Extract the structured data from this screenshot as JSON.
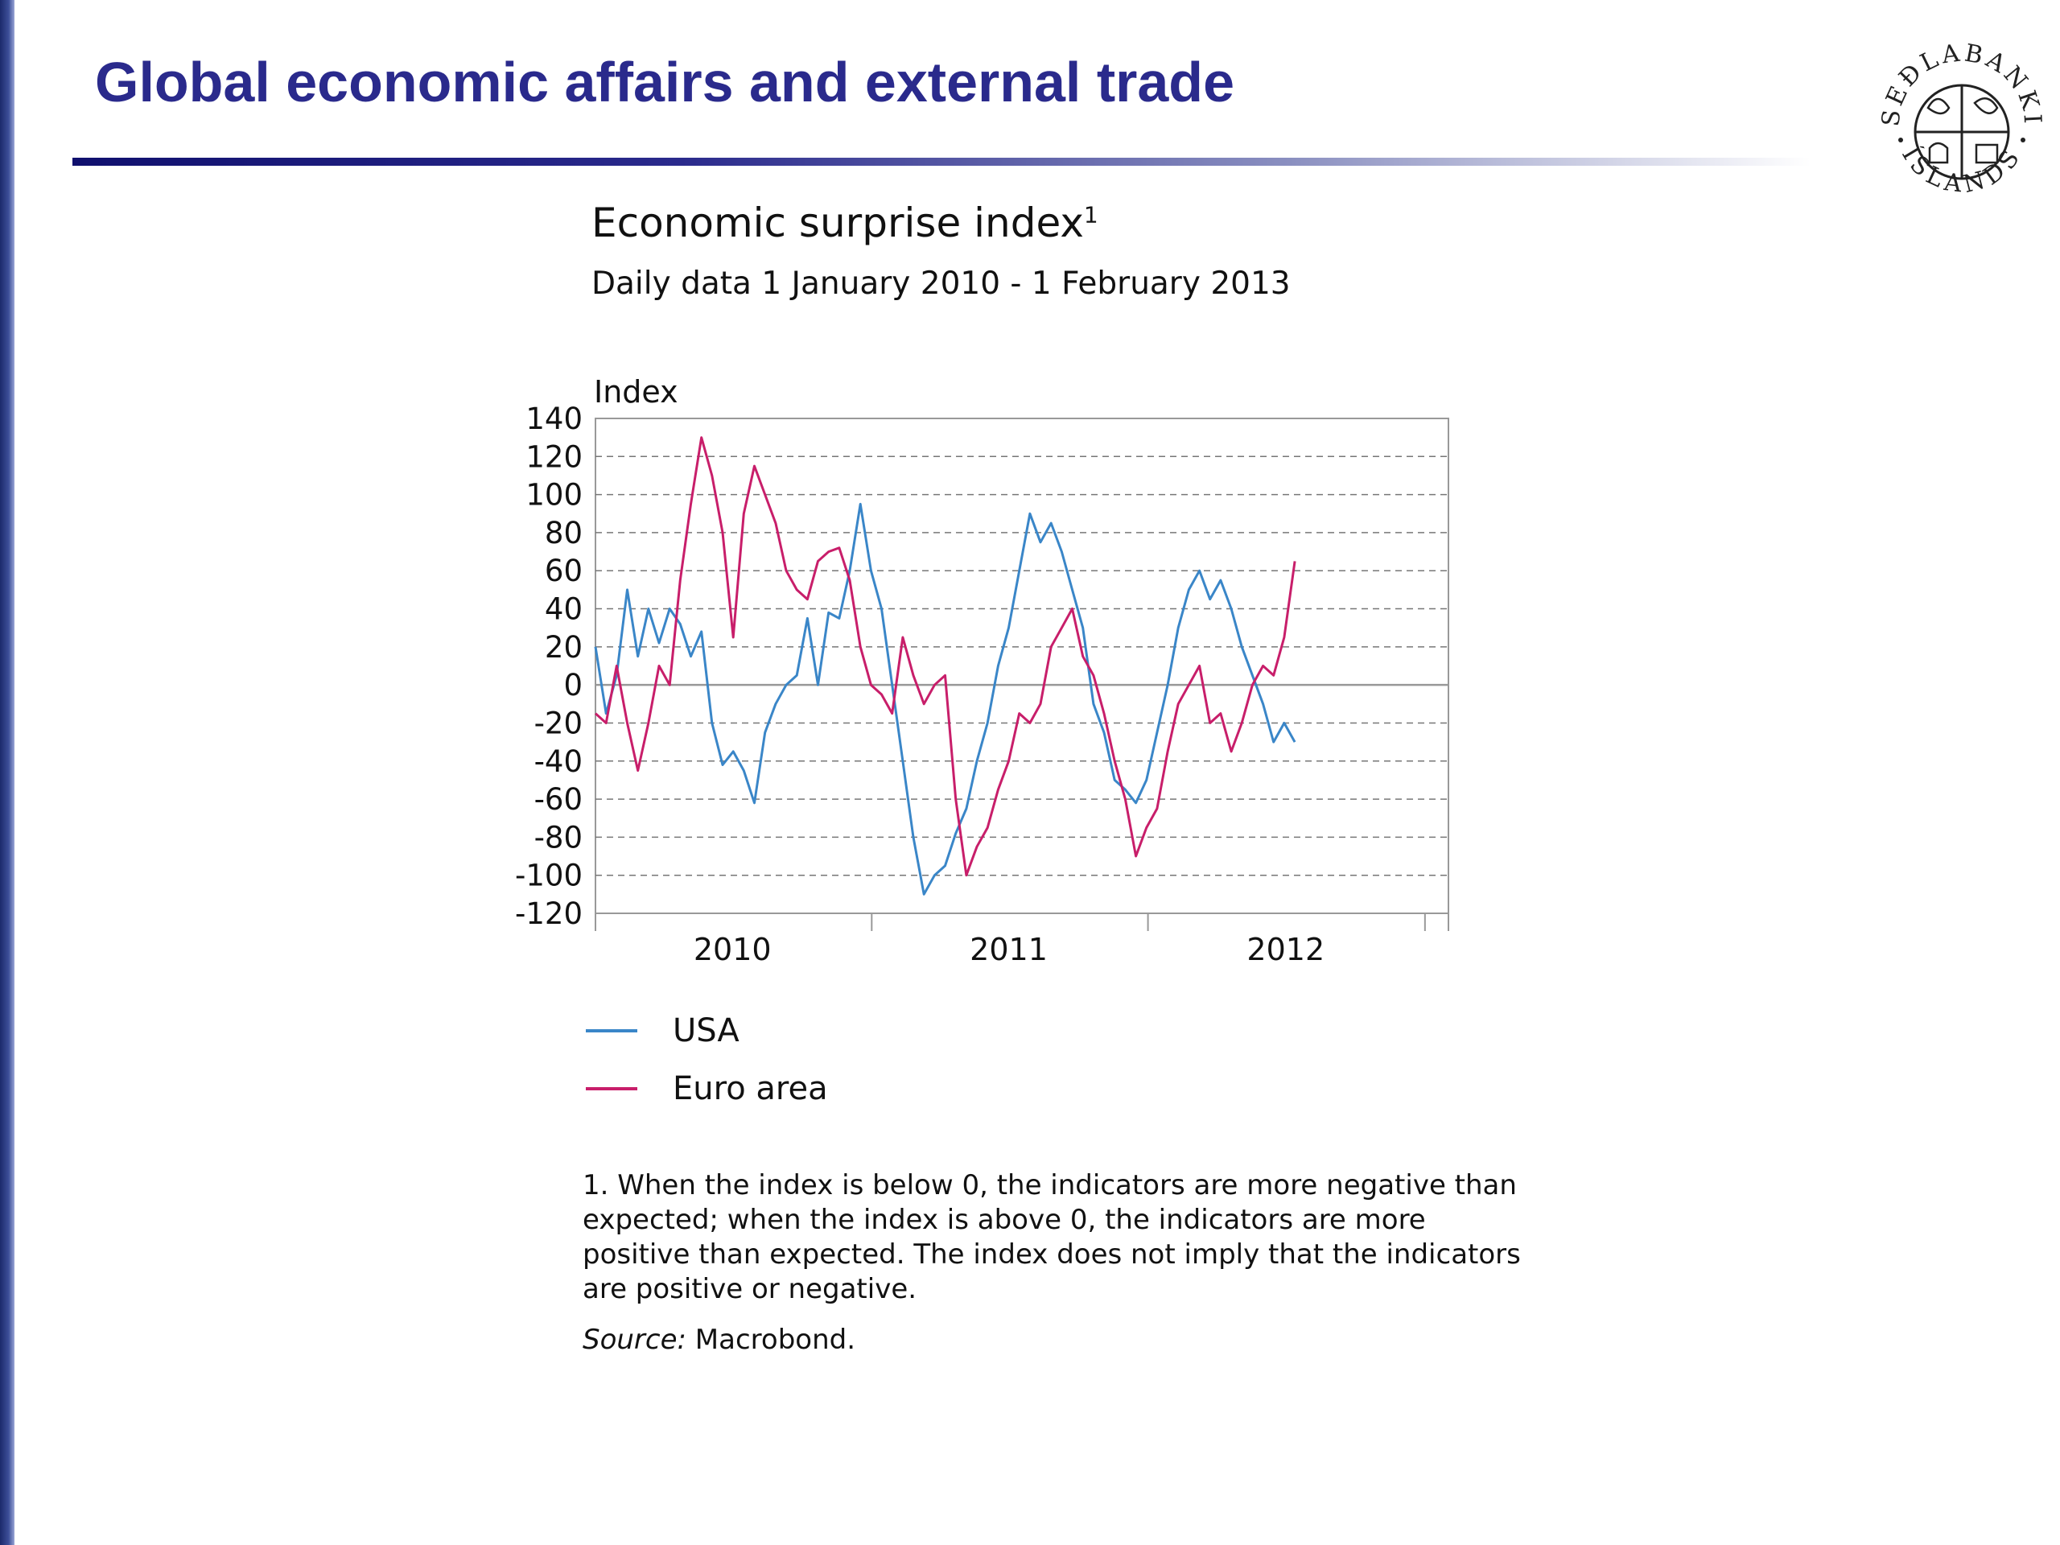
{
  "slide": {
    "title": "Global economic affairs and external trade"
  },
  "logo": {
    "text_top": "SEÐLABANKI",
    "text_bottom": "ÍSLANDS",
    "icon": "central-bank-seal-icon"
  },
  "colors": {
    "title": "#2a2a8c",
    "usa": "#3a86c8",
    "euro": "#c81e6a",
    "grid": "#777777"
  },
  "chart_data": {
    "type": "line",
    "title": "Economic surprise index",
    "title_footnote_marker": "1",
    "subtitle": "Daily data 1 January 2010 - 1 February 2013",
    "ylabel": "Index",
    "ylim": [
      -120,
      140
    ],
    "yticks": [
      "140",
      "120",
      "100",
      "80",
      "60",
      "40",
      "20",
      "0",
      "-20",
      "-40",
      "-60",
      "-80",
      "-100",
      "-120"
    ],
    "xlim": [
      "2010-01-01",
      "2013-02-01"
    ],
    "xtick_labels": [
      {
        "label": "2010",
        "date": "2010-07-01"
      },
      {
        "label": "2011",
        "date": "2011-07-01"
      },
      {
        "label": "2012",
        "date": "2012-07-01"
      }
    ],
    "year_boundaries": [
      "2011-01-01",
      "2012-01-01",
      "2013-01-01"
    ],
    "grid": true,
    "legend_position": "bottom-left",
    "series": [
      {
        "name": "USA",
        "color": "#3a86c8",
        "points": [
          [
            "2010-01-01",
            20
          ],
          [
            "2010-01-15",
            -15
          ],
          [
            "2010-01-29",
            5
          ],
          [
            "2010-02-12",
            50
          ],
          [
            "2010-02-26",
            15
          ],
          [
            "2010-03-12",
            40
          ],
          [
            "2010-03-26",
            22
          ],
          [
            "2010-04-09",
            40
          ],
          [
            "2010-04-23",
            32
          ],
          [
            "2010-05-07",
            15
          ],
          [
            "2010-05-21",
            28
          ],
          [
            "2010-06-04",
            -20
          ],
          [
            "2010-06-18",
            -42
          ],
          [
            "2010-07-02",
            -35
          ],
          [
            "2010-07-16",
            -45
          ],
          [
            "2010-07-30",
            -62
          ],
          [
            "2010-08-13",
            -25
          ],
          [
            "2010-08-27",
            -10
          ],
          [
            "2010-09-10",
            0
          ],
          [
            "2010-09-24",
            5
          ],
          [
            "2010-10-08",
            35
          ],
          [
            "2010-10-22",
            0
          ],
          [
            "2010-11-05",
            38
          ],
          [
            "2010-11-19",
            35
          ],
          [
            "2010-12-03",
            60
          ],
          [
            "2010-12-17",
            95
          ],
          [
            "2010-12-31",
            60
          ],
          [
            "2011-01-14",
            40
          ],
          [
            "2011-01-28",
            0
          ],
          [
            "2011-02-11",
            -40
          ],
          [
            "2011-02-25",
            -80
          ],
          [
            "2011-03-11",
            -110
          ],
          [
            "2011-03-25",
            -100
          ],
          [
            "2011-04-08",
            -95
          ],
          [
            "2011-04-22",
            -78
          ],
          [
            "2011-05-06",
            -65
          ],
          [
            "2011-05-20",
            -40
          ],
          [
            "2011-06-03",
            -20
          ],
          [
            "2011-06-17",
            10
          ],
          [
            "2011-07-01",
            30
          ],
          [
            "2011-07-15",
            60
          ],
          [
            "2011-07-29",
            90
          ],
          [
            "2011-08-12",
            75
          ],
          [
            "2011-08-26",
            85
          ],
          [
            "2011-09-09",
            70
          ],
          [
            "2011-09-23",
            50
          ],
          [
            "2011-10-07",
            30
          ],
          [
            "2011-10-21",
            -10
          ],
          [
            "2011-11-04",
            -25
          ],
          [
            "2011-11-18",
            -50
          ],
          [
            "2011-12-02",
            -55
          ],
          [
            "2011-12-16",
            -62
          ],
          [
            "2011-12-30",
            -50
          ],
          [
            "2012-01-13",
            -25
          ],
          [
            "2012-01-27",
            0
          ],
          [
            "2012-02-10",
            30
          ],
          [
            "2012-02-24",
            50
          ],
          [
            "2012-03-09",
            60
          ],
          [
            "2012-03-23",
            45
          ],
          [
            "2012-04-06",
            55
          ],
          [
            "2012-04-20",
            40
          ],
          [
            "2012-05-04",
            20
          ],
          [
            "2012-05-18",
            5
          ],
          [
            "2012-06-01",
            -10
          ],
          [
            "2012-06-15",
            -30
          ],
          [
            "2012-06-29",
            -20
          ],
          [
            "2012-07-13",
            -30
          ]
        ]
      },
      {
        "name": "Euro area",
        "color": "#c81e6a",
        "points": [
          [
            "2010-01-01",
            -15
          ],
          [
            "2010-01-15",
            -20
          ],
          [
            "2010-01-29",
            10
          ],
          [
            "2010-02-12",
            -20
          ],
          [
            "2010-02-26",
            -45
          ],
          [
            "2010-03-12",
            -20
          ],
          [
            "2010-03-26",
            10
          ],
          [
            "2010-04-09",
            0
          ],
          [
            "2010-04-23",
            55
          ],
          [
            "2010-05-07",
            95
          ],
          [
            "2010-05-21",
            130
          ],
          [
            "2010-06-04",
            110
          ],
          [
            "2010-06-18",
            80
          ],
          [
            "2010-07-02",
            25
          ],
          [
            "2010-07-16",
            90
          ],
          [
            "2010-07-30",
            115
          ],
          [
            "2010-08-13",
            100
          ],
          [
            "2010-08-27",
            85
          ],
          [
            "2010-09-10",
            60
          ],
          [
            "2010-09-24",
            50
          ],
          [
            "2010-10-08",
            45
          ],
          [
            "2010-10-22",
            65
          ],
          [
            "2010-11-05",
            70
          ],
          [
            "2010-11-19",
            72
          ],
          [
            "2010-12-03",
            55
          ],
          [
            "2010-12-17",
            20
          ],
          [
            "2010-12-31",
            0
          ],
          [
            "2011-01-14",
            -5
          ],
          [
            "2011-01-28",
            -15
          ],
          [
            "2011-02-11",
            25
          ],
          [
            "2011-02-25",
            5
          ],
          [
            "2011-03-11",
            -10
          ],
          [
            "2011-03-25",
            0
          ],
          [
            "2011-04-08",
            5
          ],
          [
            "2011-04-22",
            -60
          ],
          [
            "2011-05-06",
            -100
          ],
          [
            "2011-05-20",
            -85
          ],
          [
            "2011-06-03",
            -75
          ],
          [
            "2011-06-17",
            -55
          ],
          [
            "2011-07-01",
            -40
          ],
          [
            "2011-07-15",
            -15
          ],
          [
            "2011-07-29",
            -20
          ],
          [
            "2011-08-12",
            -10
          ],
          [
            "2011-08-26",
            20
          ],
          [
            "2011-09-09",
            30
          ],
          [
            "2011-09-23",
            40
          ],
          [
            "2011-10-07",
            15
          ],
          [
            "2011-10-21",
            5
          ],
          [
            "2011-11-04",
            -15
          ],
          [
            "2011-11-18",
            -40
          ],
          [
            "2011-12-02",
            -60
          ],
          [
            "2011-12-16",
            -90
          ],
          [
            "2011-12-30",
            -75
          ],
          [
            "2012-01-13",
            -65
          ],
          [
            "2012-01-27",
            -35
          ],
          [
            "2012-02-10",
            -10
          ],
          [
            "2012-02-24",
            0
          ],
          [
            "2012-03-09",
            10
          ],
          [
            "2012-03-23",
            -20
          ],
          [
            "2012-04-06",
            -15
          ],
          [
            "2012-04-20",
            -35
          ],
          [
            "2012-05-04",
            -20
          ],
          [
            "2012-05-18",
            0
          ],
          [
            "2012-06-01",
            10
          ],
          [
            "2012-06-15",
            5
          ],
          [
            "2012-06-29",
            25
          ],
          [
            "2012-07-13",
            65
          ]
        ]
      }
    ]
  },
  "legend": {
    "items": [
      {
        "label": "USA",
        "color": "#3a86c8"
      },
      {
        "label": "Euro area",
        "color": "#c81e6a"
      }
    ]
  },
  "notes": {
    "footnote": "1. When the index is below 0, the indicators are more negative than expected; when the index is above 0, the indicators are more positive than expected. The index does not imply that the indicators are positive or negative.",
    "source_label": "Source:",
    "source_value": " Macrobond."
  }
}
